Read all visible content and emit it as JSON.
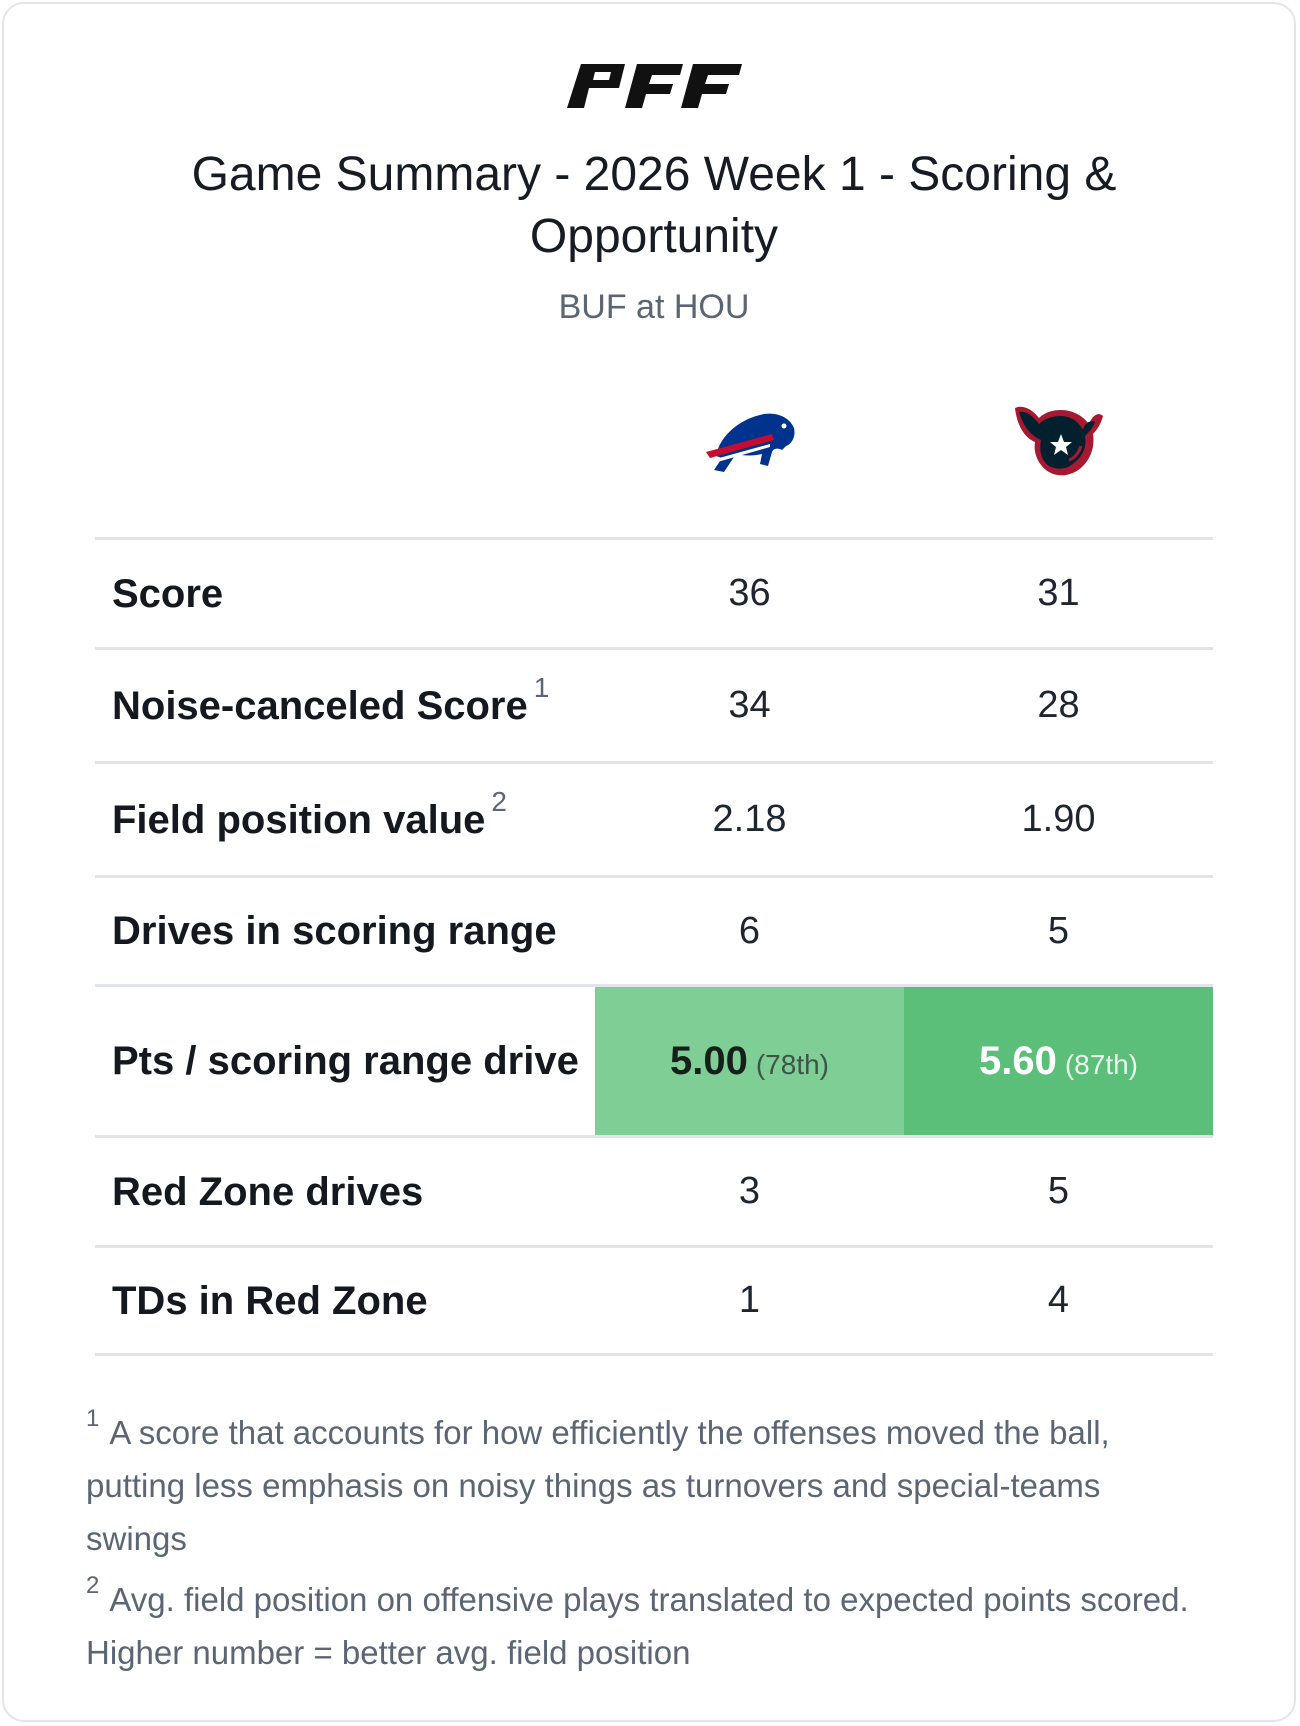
{
  "brand": {
    "logo_text": "PFF"
  },
  "header": {
    "title": "Game Summary - 2026 Week 1 - Scoring & Opportunity",
    "subtitle": "BUF at HOU"
  },
  "teams": [
    {
      "abbr": "BUF",
      "logo_icon": "buffalo-bills-logo-icon",
      "color_primary": "#00338D",
      "color_accent": "#C60C30"
    },
    {
      "abbr": "HOU",
      "logo_icon": "houston-texans-logo-icon",
      "color_primary": "#03202F",
      "color_accent": "#A71930"
    }
  ],
  "rows": [
    {
      "label": "Score",
      "footnote_ref": "",
      "buf": "36",
      "hou": "31"
    },
    {
      "label": "Noise-canceled Score",
      "footnote_ref": "1",
      "buf": "34",
      "hou": "28"
    },
    {
      "label": "Field position value",
      "footnote_ref": "2",
      "buf": "2.18",
      "hou": "1.90"
    },
    {
      "label": "Drives in scoring range",
      "footnote_ref": "",
      "buf": "6",
      "hou": "5"
    },
    {
      "label": "Pts / scoring range drive",
      "footnote_ref": "",
      "buf": "5.00",
      "buf_rank": "(78th)",
      "hou": "5.60",
      "hou_rank": "(87th)",
      "buf_highlight": "#7fce96",
      "hou_highlight": "#5bbf79"
    },
    {
      "label": "Red Zone drives",
      "footnote_ref": "",
      "buf": "3",
      "hou": "5"
    },
    {
      "label": "TDs in Red Zone",
      "footnote_ref": "",
      "buf": "1",
      "hou": "4"
    }
  ],
  "footnotes": [
    {
      "marker": "1",
      "text": "A score that accounts for how efficiently the offenses moved the ball, putting less emphasis on noisy things as turnovers and special-teams swings"
    },
    {
      "marker": "2",
      "text": "Avg. field position on offensive plays translated to expected points scored. Higher number = better avg. field position"
    }
  ]
}
